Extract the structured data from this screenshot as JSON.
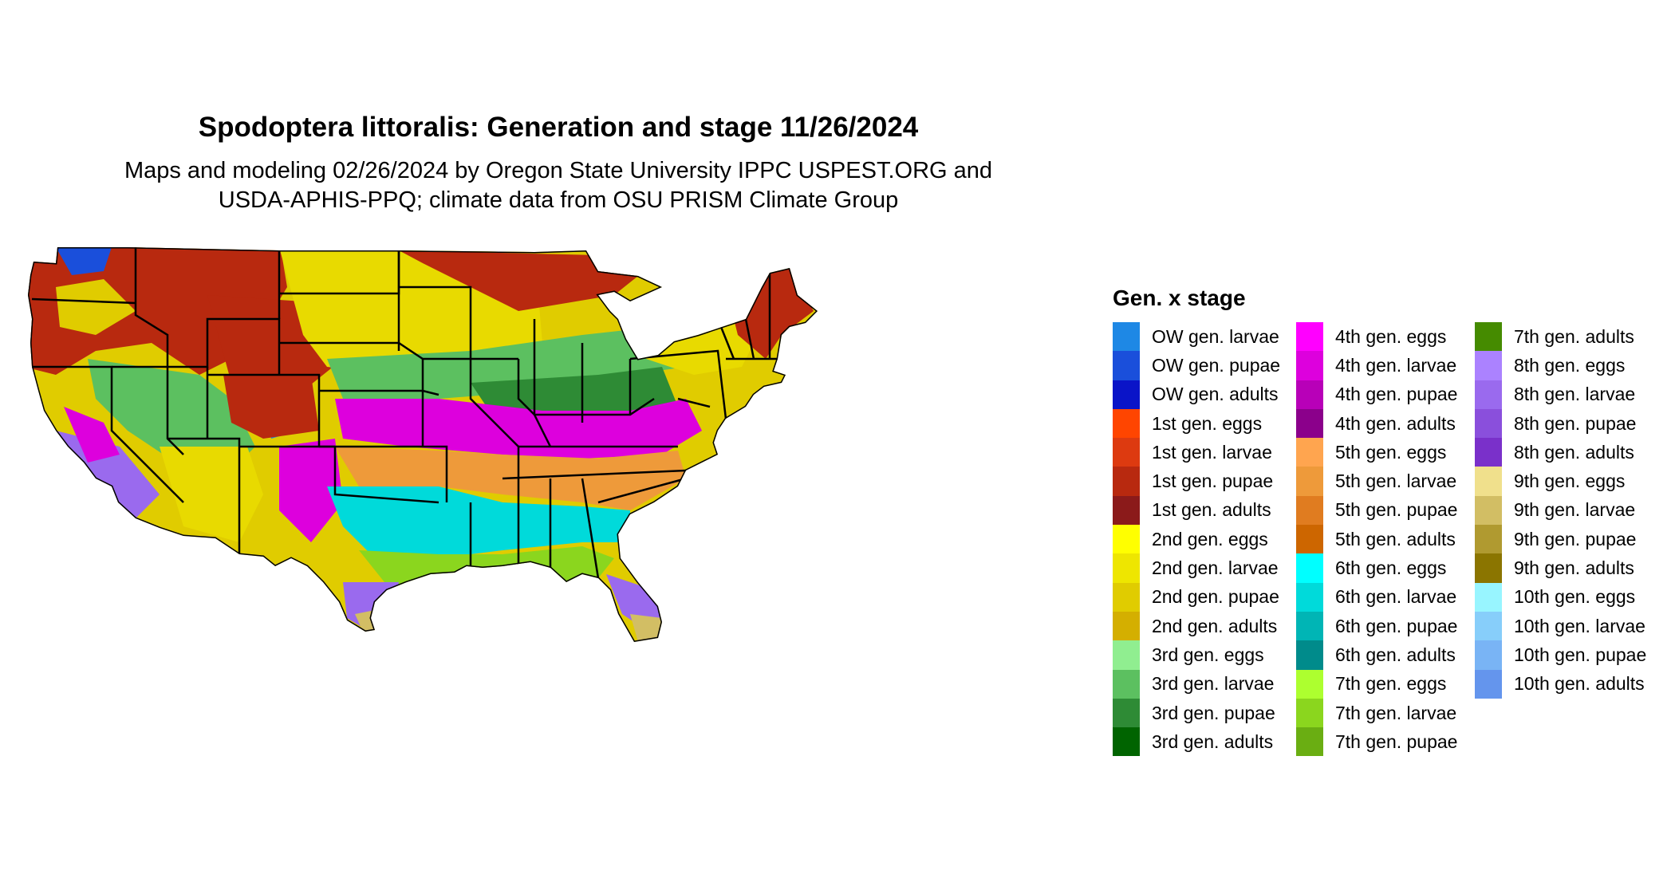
{
  "title": "Spodoptera littoralis: Generation and stage 11/26/2024",
  "subtitle_lines": [
    "Maps and modeling 02/26/2024 by Oregon State University IPPC USPEST.ORG and",
    "USDA-APHIS-PPQ; climate data from OSU PRISM Climate Group"
  ],
  "legend": {
    "title": "Gen. x stage",
    "columns": [
      [
        {
          "label": "OW gen. larvae",
          "color": "#1E88E5"
        },
        {
          "label": "OW gen. pupae",
          "color": "#1A4FDB"
        },
        {
          "label": "OW gen. adults",
          "color": "#0A14C8"
        },
        {
          "label": "1st gen. eggs",
          "color": "#FF4500"
        },
        {
          "label": "1st gen. larvae",
          "color": "#DD3A10"
        },
        {
          "label": "1st gen. pupae",
          "color": "#B8290F"
        },
        {
          "label": "1st gen. adults",
          "color": "#8B1A1A"
        },
        {
          "label": "2nd gen. eggs",
          "color": "#FFFF00"
        },
        {
          "label": "2nd gen. larvae",
          "color": "#EEE600"
        },
        {
          "label": "2nd gen. pupae",
          "color": "#E0CC00"
        },
        {
          "label": "2nd gen. adults",
          "color": "#D4AF00"
        },
        {
          "label": "3rd gen. eggs",
          "color": "#90EE90"
        },
        {
          "label": "3rd gen. larvae",
          "color": "#5CC060"
        },
        {
          "label": "3rd gen. pupae",
          "color": "#2E8B35"
        },
        {
          "label": "3rd gen. adults",
          "color": "#006400"
        }
      ],
      [
        {
          "label": "4th gen. eggs",
          "color": "#FF00FF"
        },
        {
          "label": "4th gen. larvae",
          "color": "#DD00DD"
        },
        {
          "label": "4th gen. pupae",
          "color": "#B800B8"
        },
        {
          "label": "4th gen. adults",
          "color": "#8B008B"
        },
        {
          "label": "5th gen. eggs",
          "color": "#FFA54F"
        },
        {
          "label": "5th gen. larvae",
          "color": "#EE9A3A"
        },
        {
          "label": "5th gen. pupae",
          "color": "#E07C20"
        },
        {
          "label": "5th gen. adults",
          "color": "#CD6600"
        },
        {
          "label": "6th gen. eggs",
          "color": "#00FFFF"
        },
        {
          "label": "6th gen. larvae",
          "color": "#00DADA"
        },
        {
          "label": "6th gen. pupae",
          "color": "#00B5B5"
        },
        {
          "label": "6th gen. adults",
          "color": "#008B8B"
        },
        {
          "label": "7th gen. eggs",
          "color": "#ADFF2F"
        },
        {
          "label": "7th gen. larvae",
          "color": "#8BD61E"
        },
        {
          "label": "7th gen. pupae",
          "color": "#6AAE12"
        }
      ],
      [
        {
          "label": "7th gen. adults",
          "color": "#458B00"
        },
        {
          "label": "8th gen. eggs",
          "color": "#AB82FF"
        },
        {
          "label": "8th gen. larvae",
          "color": "#9A6AEE"
        },
        {
          "label": "8th gen. pupae",
          "color": "#8A4FDC"
        },
        {
          "label": "8th gen. adults",
          "color": "#7A30CA"
        },
        {
          "label": "9th gen. eggs",
          "color": "#F0E08C"
        },
        {
          "label": "9th gen. larvae",
          "color": "#D2BE64"
        },
        {
          "label": "9th gen. pupae",
          "color": "#B09A30"
        },
        {
          "label": "9th gen. adults",
          "color": "#8B7500"
        },
        {
          "label": "10th gen. eggs",
          "color": "#98F5FF"
        },
        {
          "label": "10th gen. larvae",
          "color": "#87CEFA"
        },
        {
          "label": "10th gen. pupae",
          "color": "#79B4F5"
        },
        {
          "label": "10th gen. adults",
          "color": "#6495ED"
        }
      ]
    ]
  }
}
